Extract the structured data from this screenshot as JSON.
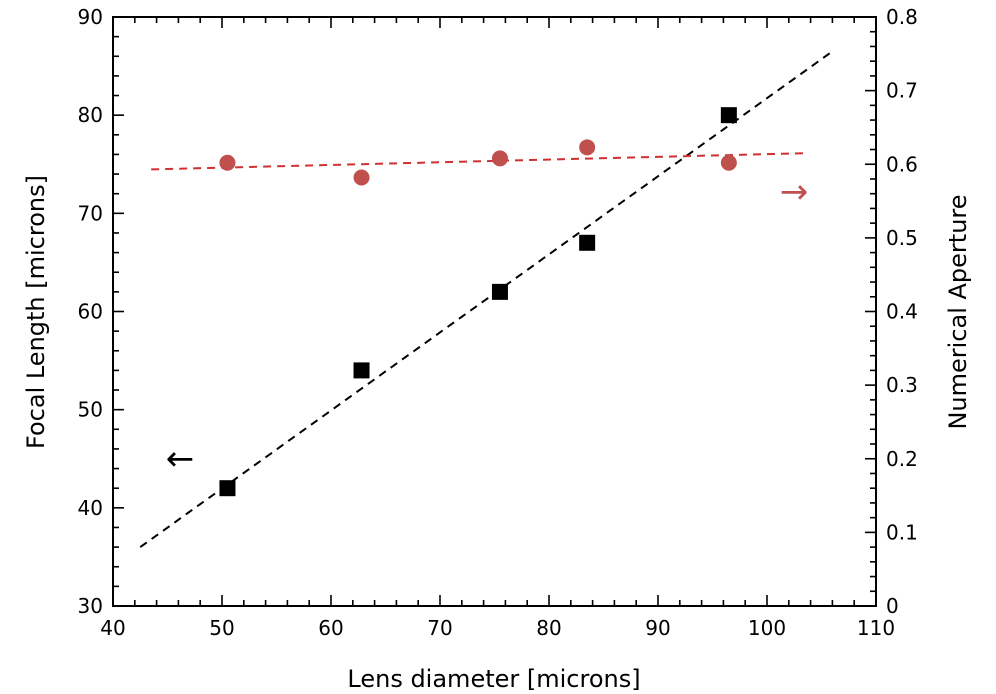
{
  "chart_data": {
    "type": "scatter",
    "xlabel": "Lens diameter [microns]",
    "ylabel_left": "Focal  Length [microns]",
    "ylabel_right": "Numerical  Aperture",
    "xlim": [
      40,
      110
    ],
    "ylim_left": [
      30,
      90
    ],
    "ylim_right": [
      0,
      0.8
    ],
    "x_ticks": [
      "40",
      "50",
      "60",
      "70",
      "80",
      "90",
      "100",
      "110"
    ],
    "y_left_ticks": [
      "30",
      "40",
      "50",
      "60",
      "70",
      "80",
      "90"
    ],
    "y_right_ticks": [
      "0",
      "0.1",
      "0.2",
      "0.3",
      "0.4",
      "0.5",
      "0.6",
      "0.7",
      "0.8"
    ],
    "grid": false,
    "series": [
      {
        "axis": "left",
        "marker": "square",
        "color": "#000000",
        "x": [
          50.5,
          62.8,
          75.5,
          83.5,
          96.5
        ],
        "y": [
          42,
          54,
          62,
          67,
          80
        ]
      },
      {
        "axis": "right",
        "marker": "circle",
        "color": "#c0504d",
        "x": [
          50.5,
          62.8,
          75.5,
          83.5,
          96.5
        ],
        "y": [
          0.602,
          0.582,
          0.608,
          0.623,
          0.602
        ]
      }
    ],
    "fit_lines": [
      {
        "axis": "left",
        "color": "#000000",
        "x": [
          42.5,
          106
        ],
        "y": [
          36.0,
          86.5
        ]
      },
      {
        "axis": "right",
        "color": "#d03030",
        "x": [
          43.5,
          103.5
        ],
        "y": [
          0.593,
          0.615
        ]
      }
    ],
    "annotations": [
      {
        "text": "←",
        "color": "#000000"
      },
      {
        "text": "→",
        "color": "#c0504d"
      }
    ]
  }
}
